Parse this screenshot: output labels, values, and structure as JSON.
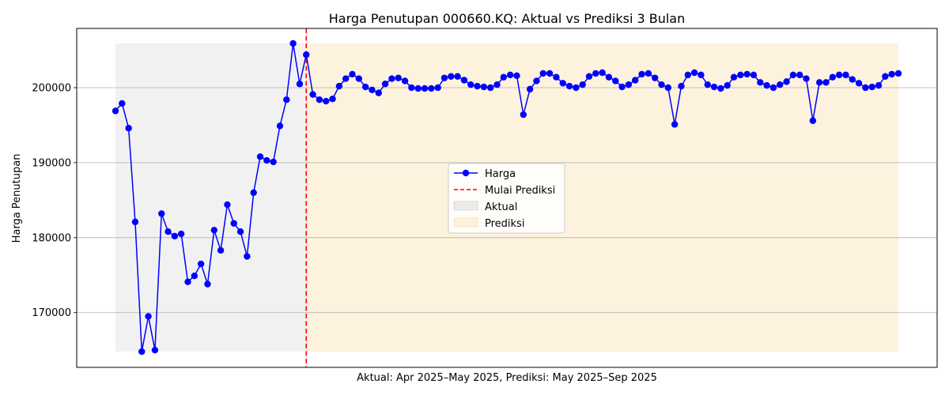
{
  "chart_data": {
    "type": "line",
    "title": "Harga Penutupan 000660.KQ: Aktual vs Prediksi 3 Bulan",
    "xlabel": "Aktual: Apr 2025–May 2025, Prediksi: May 2025–Sep 2025",
    "ylabel": "Harga Penutupan",
    "ylim": [
      162700,
      207900
    ],
    "yticks": [
      170000,
      180000,
      190000,
      200000
    ],
    "ytick_labels": [
      "170000",
      "180000",
      "190000",
      "200000"
    ],
    "grid": "horizontal",
    "legend_position": "center",
    "prediction_start_index": 29,
    "series": [
      {
        "name": "Harga",
        "color": "#0000ff",
        "values": [
          196900,
          197900,
          194600,
          182100,
          164800,
          169500,
          165000,
          183200,
          180800,
          180200,
          180500,
          174100,
          174900,
          176500,
          173800,
          181000,
          178300,
          184400,
          181900,
          180800,
          177500,
          186000,
          190800,
          190300,
          190100,
          194900,
          198400,
          205900,
          200500,
          204400,
          199100,
          198400,
          198200,
          198500,
          200200,
          201200,
          201800,
          201200,
          200100,
          199700,
          199300,
          200500,
          201200,
          201300,
          200900,
          200000,
          199900,
          199900,
          199900,
          200000,
          201300,
          201500,
          201500,
          201000,
          200400,
          200200,
          200100,
          200000,
          200400,
          201400,
          201700,
          201600,
          196400,
          199800,
          200900,
          201900,
          201900,
          201400,
          200600,
          200200,
          200000,
          200400,
          201500,
          201900,
          202000,
          201400,
          200900,
          200100,
          200400,
          201000,
          201800,
          201900,
          201300,
          200400,
          200000,
          195100,
          200200,
          201700,
          202000,
          201700,
          200400,
          200100,
          199900,
          200300,
          201400,
          201700,
          201800,
          201700,
          200700,
          200300,
          200000,
          200400,
          200800,
          201700,
          201700,
          201200,
          195600,
          200700,
          200700,
          201400,
          201700,
          201700,
          201100,
          200600,
          200000,
          200100,
          200300,
          201500,
          201800,
          201900
        ]
      }
    ],
    "vline": {
      "name": "Mulai Prediksi",
      "color": "#ff0000"
    },
    "regions": [
      {
        "name": "Aktual",
        "color": "#d3d3d3"
      },
      {
        "name": "Prediksi",
        "color": "#fbe3b6"
      }
    ]
  }
}
